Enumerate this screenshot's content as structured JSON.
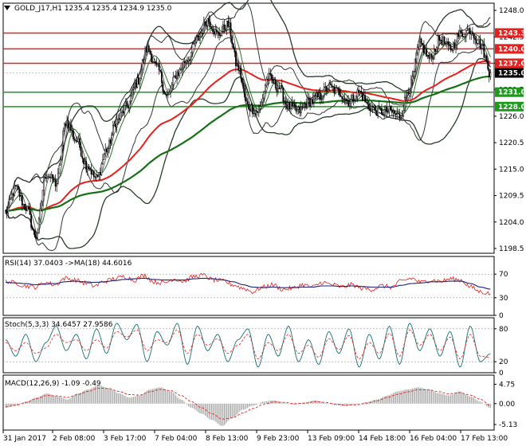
{
  "chart_data": {
    "type": "candlestick",
    "title": "GOLD_J17,H1  1235.4 1235.4 1234.9 1235.0",
    "x_tick_labels": [
      "31 Jan 2017",
      "2 Feb 08:00",
      "3 Feb 17:00",
      "7 Feb 04:00",
      "8 Feb 13:00",
      "9 Feb 23:00",
      "13 Feb 09:00",
      "14 Feb 18:00",
      "16 Feb 04:00",
      "17 Feb 13:00"
    ],
    "main": {
      "ylim": [
        1197.5,
        1249.5
      ],
      "y_ticks": [
        1248.0,
        1242.5,
        1237.0,
        1231.5,
        1226.0,
        1220.5,
        1215.0,
        1209.5,
        1204.0,
        1198.5
      ],
      "last_price": 1235.0,
      "last_price_label": "1235.0",
      "levels": [
        {
          "value": 1243.3,
          "label": "1243.3",
          "color": "#e8201d"
        },
        {
          "value": 1240.0,
          "label": "1240.0",
          "color": "#e8201d"
        },
        {
          "value": 1237.0,
          "label": "1237.0",
          "color": "#e8201d"
        },
        {
          "value": 1231.0,
          "label": "1231.0",
          "color": "#1c9b1c"
        },
        {
          "value": 1228.0,
          "label": "1228.0",
          "color": "#1c9b1c"
        }
      ],
      "close_anchors": [
        1206,
        1211,
        1207,
        1201,
        1214,
        1212,
        1225,
        1221,
        1216,
        1213,
        1219,
        1225,
        1228,
        1233,
        1240,
        1236,
        1230,
        1235,
        1238,
        1242,
        1246,
        1243,
        1245,
        1236,
        1228,
        1227,
        1234,
        1232,
        1228,
        1227,
        1229,
        1230,
        1232,
        1231,
        1229,
        1231,
        1228,
        1227,
        1227,
        1226,
        1232,
        1241,
        1238,
        1242,
        1240,
        1243,
        1244,
        1241,
        1235
      ]
    },
    "rsi": {
      "label": "RSI(14) 37.0403  ->MA(18) 44.6016",
      "ylim": [
        0,
        100
      ],
      "y_ticks": [
        70,
        30,
        0
      ],
      "anchors": [
        58,
        55,
        50,
        48,
        56,
        52,
        63,
        60,
        55,
        50,
        58,
        62,
        66,
        60,
        68,
        57,
        55,
        62,
        58,
        66,
        68,
        60,
        58,
        52,
        46,
        40,
        48,
        52,
        44,
        46,
        52,
        48,
        56,
        52,
        48,
        52,
        46,
        44,
        50,
        48,
        58,
        63,
        56,
        60,
        58,
        62,
        60,
        48,
        40,
        37
      ],
      "ma_anchors": [
        56,
        55,
        54,
        52,
        53,
        54,
        57,
        58,
        57,
        56,
        57,
        59,
        61,
        62,
        63,
        61,
        60,
        60,
        60,
        62,
        63,
        62,
        60,
        57,
        52,
        48,
        47,
        48,
        47,
        47,
        48,
        48,
        50,
        50,
        49,
        50,
        49,
        48,
        48,
        48,
        51,
        54,
        55,
        57,
        57,
        58,
        58,
        54,
        48,
        44.6
      ]
    },
    "stoch": {
      "label": "Stoch(5,3,3) 34.6457 27.9586",
      "ylim": [
        0,
        100
      ],
      "y_ticks": [
        80,
        20,
        0
      ],
      "main_anchors": [
        60,
        30,
        70,
        20,
        55,
        85,
        40,
        70,
        25,
        80,
        35,
        90,
        60,
        88,
        20,
        75,
        50,
        90,
        15,
        85,
        40,
        70,
        20,
        60,
        80,
        10,
        70,
        30,
        85,
        20,
        60,
        15,
        75,
        35,
        80,
        10,
        70,
        25,
        85,
        15,
        90,
        40,
        80,
        30,
        75,
        10,
        85,
        20,
        34.6
      ],
      "signal_anchors": [
        55,
        40,
        55,
        35,
        45,
        70,
        55,
        60,
        40,
        60,
        45,
        75,
        65,
        78,
        40,
        60,
        55,
        78,
        35,
        70,
        50,
        62,
        35,
        50,
        70,
        25,
        55,
        40,
        70,
        35,
        50,
        28,
        62,
        42,
        68,
        25,
        55,
        35,
        72,
        30,
        78,
        50,
        70,
        40,
        65,
        25,
        70,
        30,
        27.96
      ]
    },
    "macd": {
      "label": "MACD(12,26,9) -1.09 -0.49",
      "ylim": [
        -6.5,
        7.0
      ],
      "y_ticks": [
        4.75,
        0.0,
        -5.13
      ],
      "histogram_anchors": [
        -1,
        -0.5,
        0.5,
        1.5,
        2.5,
        1.8,
        1.0,
        2.5,
        3.5,
        4.5,
        3.8,
        2.5,
        1.5,
        2.0,
        3.5,
        4.0,
        3.0,
        1.0,
        -1.0,
        -2.5,
        -4.0,
        -5.5,
        -3.5,
        -1.5,
        -0.5,
        0.5,
        0.8,
        0.2,
        -0.3,
        0.3,
        0.8,
        0.2,
        -0.4,
        -0.6,
        -0.2,
        0.4,
        1.0,
        2.0,
        3.0,
        3.5,
        4.0,
        3.5,
        2.5,
        2.0,
        3.0,
        1.8,
        0.5,
        -1.09
      ],
      "signal_anchors": [
        -0.8,
        -0.4,
        0.3,
        1.2,
        2.0,
        1.9,
        1.5,
        2.2,
        3.0,
        3.8,
        3.7,
        3.0,
        2.2,
        2.1,
        2.9,
        3.5,
        3.2,
        2.0,
        0.5,
        -1.0,
        -2.5,
        -3.8,
        -3.5,
        -2.3,
        -1.2,
        -0.2,
        0.4,
        0.3,
        0.0,
        0.1,
        0.5,
        0.3,
        -0.1,
        -0.4,
        -0.3,
        0.1,
        0.7,
        1.5,
        2.3,
        2.9,
        3.4,
        3.4,
        2.9,
        2.4,
        2.7,
        2.1,
        1.1,
        -0.49
      ]
    }
  }
}
